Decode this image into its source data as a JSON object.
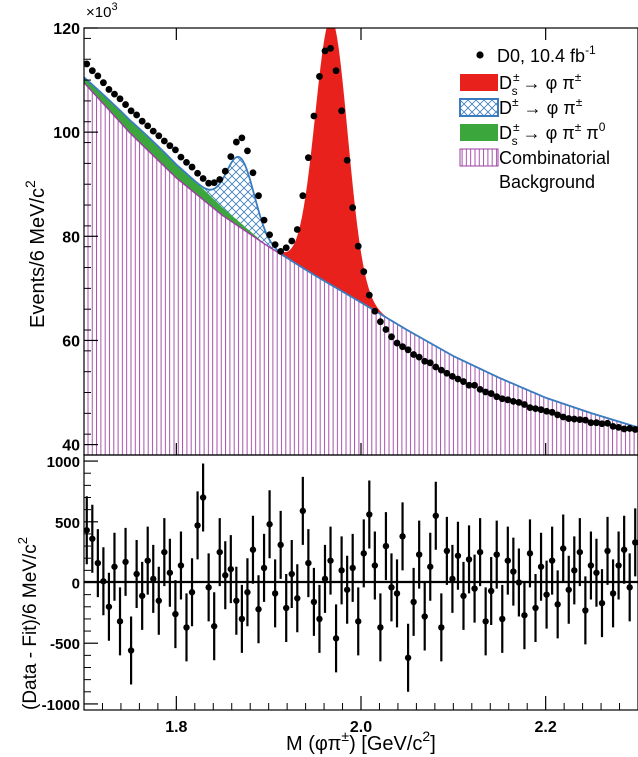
{
  "chart_data": [
    {
      "type": "line",
      "panel": "top",
      "multiplier_label": "×10",
      "multiplier_exp": "3",
      "ylabel": "Events/6 MeV/c",
      "ylabel_sup": "2",
      "xlim": [
        1.7,
        2.3
      ],
      "ylim": [
        38,
        120
      ],
      "yticks": [
        40,
        60,
        80,
        100,
        120
      ],
      "xticks": [
        1.8,
        2.0,
        2.2
      ],
      "grid": false,
      "legend_position": "top-right",
      "legend": [
        {
          "key": "data",
          "main": "D0, 10.4 fb",
          "sup": "-1"
        },
        {
          "key": "ds",
          "main": "D",
          "sub": "s",
          "sup": "±",
          "tail": " → φ π",
          "tail_sup": "±",
          "color": "#e8211c"
        },
        {
          "key": "dplus",
          "main": "D",
          "sup": "±",
          "tail": " → φ π",
          "tail_sup": "±",
          "color": "#3a7cc0"
        },
        {
          "key": "dspi0",
          "main": "D",
          "sub": "s",
          "sup": "±",
          "tail": " → φ π",
          "tail_sup": "±",
          "tail2": " π",
          "tail2_sup": "0",
          "color": "#3ba63b"
        },
        {
          "key": "comb",
          "main": "Combinatorial",
          "line2": "Background",
          "color": "#9b3fa3"
        }
      ],
      "background_model": {
        "x": [
          1.7,
          1.75,
          1.8,
          1.85,
          1.9,
          1.95,
          2.0,
          2.05,
          2.1,
          2.15,
          2.2,
          2.25,
          2.3
        ],
        "y": [
          109.5,
          99.8,
          91.2,
          84.0,
          78.0,
          72.5,
          67.3,
          62.0,
          57.0,
          52.8,
          49.0,
          46.0,
          43.3
        ]
      },
      "peaks": [
        {
          "name": "Ds→φπ",
          "center": 1.968,
          "amplitude": 51.2,
          "sigma": 0.0175
        },
        {
          "name": "D+→φπ",
          "center": 1.8695,
          "amplitude": 12.5,
          "sigma": 0.015
        },
        {
          "name": "Ds→φππ0",
          "shape": "shoulder",
          "max_at": 1.74,
          "amplitude": 3.0
        }
      ],
      "data_points": {
        "x": [
          1.703,
          1.709,
          1.715,
          1.721,
          1.727,
          1.733,
          1.739,
          1.745,
          1.751,
          1.757,
          1.763,
          1.769,
          1.775,
          1.781,
          1.787,
          1.793,
          1.799,
          1.805,
          1.811,
          1.817,
          1.823,
          1.829,
          1.835,
          1.841,
          1.847,
          1.853,
          1.859,
          1.865,
          1.871,
          1.877,
          1.883,
          1.889,
          1.895,
          1.901,
          1.907,
          1.913,
          1.919,
          1.925,
          1.931,
          1.937,
          1.943,
          1.949,
          1.955,
          1.961,
          1.967,
          1.973,
          1.979,
          1.985,
          1.991,
          1.997,
          2.003,
          2.009,
          2.015,
          2.021,
          2.027,
          2.033,
          2.039,
          2.045,
          2.051,
          2.057,
          2.063,
          2.069,
          2.075,
          2.081,
          2.087,
          2.093,
          2.099,
          2.105,
          2.111,
          2.117,
          2.123,
          2.129,
          2.135,
          2.141,
          2.147,
          2.153,
          2.159,
          2.165,
          2.171,
          2.177,
          2.183,
          2.189,
          2.195,
          2.201,
          2.207,
          2.213,
          2.219,
          2.225,
          2.231,
          2.237,
          2.243,
          2.249,
          2.255,
          2.261,
          2.267,
          2.273,
          2.279,
          2.285,
          2.291,
          2.297
        ],
        "y": [
          113.1,
          111.8,
          110.8,
          109.5,
          108.2,
          107.3,
          106.4,
          105.3,
          104.1,
          103.3,
          102.1,
          101.2,
          100.2,
          99.3,
          98.3,
          97.4,
          96.6,
          95.2,
          94.2,
          93.3,
          92.1,
          91.1,
          90.2,
          90.3,
          90.9,
          92.5,
          95.3,
          98.1,
          98.9,
          96.4,
          92.2,
          87.8,
          83.1,
          80.3,
          78.4,
          77.1,
          77.8,
          79.1,
          81.3,
          87.8,
          95.1,
          103.1,
          110.7,
          115.6,
          116.1,
          111.8,
          104.1,
          94.6,
          85.5,
          78.1,
          73.2,
          68.7,
          65.6,
          63.6,
          62.1,
          60.7,
          59.5,
          58.8,
          58.2,
          57.3,
          56.8,
          56.0,
          55.7,
          54.9,
          54.3,
          53.7,
          53.1,
          52.6,
          52.1,
          51.4,
          51.4,
          50.6,
          50.1,
          49.8,
          49.2,
          48.8,
          48.6,
          48.3,
          48.1,
          47.7,
          47.1,
          46.9,
          46.7,
          46.4,
          46.2,
          45.7,
          45.3,
          45.0,
          44.9,
          44.8,
          44.7,
          44.2,
          44.2,
          44.0,
          44.1,
          43.5,
          43.3,
          43.0,
          43.1,
          42.9
        ]
      }
    },
    {
      "type": "scatter",
      "panel": "bottom",
      "xlabel": "M (φπ",
      "xlabel_sup": "±",
      "xlabel_tail": ") [GeV/c",
      "xlabel_tail_sup": "2",
      "xlabel_end": "]",
      "ylabel": "(Data - Fit)/6 MeV/c",
      "ylabel_sup": "2",
      "xlim": [
        1.7,
        2.3
      ],
      "ylim": [
        -1050,
        1050
      ],
      "yticks": [
        -1000,
        -500,
        0,
        500,
        1000
      ],
      "xticks": [
        1.8,
        2.0,
        2.2
      ],
      "error_bar": 280,
      "residuals": [
        430,
        360,
        160,
        10,
        -200,
        130,
        -320,
        170,
        -560,
        70,
        -110,
        180,
        30,
        -150,
        250,
        80,
        -260,
        140,
        -370,
        -80,
        470,
        700,
        -40,
        -360,
        250,
        60,
        110,
        -150,
        -300,
        -80,
        270,
        -220,
        120,
        480,
        -90,
        310,
        -210,
        70,
        -130,
        590,
        160,
        -160,
        -300,
        30,
        180,
        -460,
        100,
        -60,
        120,
        -320,
        240,
        560,
        140,
        -370,
        300,
        -40,
        -90,
        380,
        -620,
        -160,
        230,
        -280,
        130,
        550,
        -370,
        260,
        30,
        220,
        -110,
        190,
        -50,
        250,
        -320,
        -70,
        230,
        -300,
        180,
        90,
        0,
        -270,
        240,
        -210,
        130,
        -100,
        180,
        -180,
        280,
        -60,
        100,
        250,
        -230,
        140,
        80,
        -170,
        260,
        -90,
        140,
        270,
        -40,
        330
      ],
      "first_x": 1.703,
      "step": 0.006
    }
  ]
}
